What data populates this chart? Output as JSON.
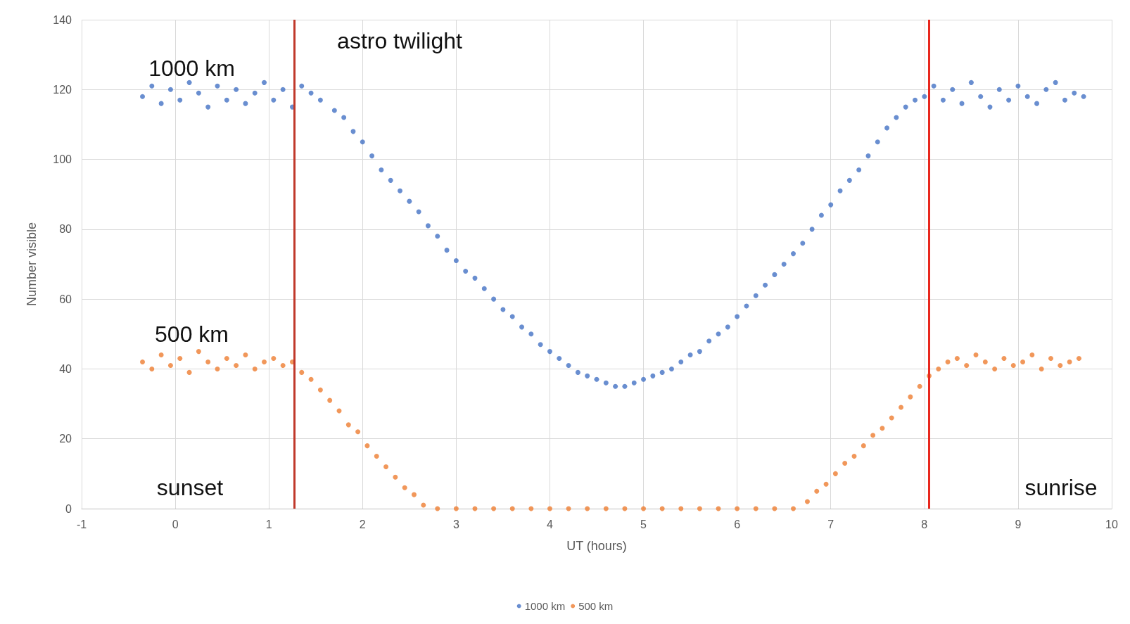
{
  "chart_data": {
    "type": "scatter",
    "xlabel": "UT (hours)",
    "ylabel": "Number visible",
    "xlim": [
      -1,
      10
    ],
    "xticks": [
      -1,
      0,
      1,
      2,
      3,
      4,
      5,
      6,
      7,
      8,
      9,
      10
    ],
    "ylim": [
      0,
      140
    ],
    "yticks": [
      0,
      20,
      40,
      60,
      80,
      100,
      120,
      140
    ],
    "grid": true,
    "legend": "bottom",
    "marker": "circle",
    "series": [
      {
        "name": "1000 km",
        "color": "#4472c4",
        "x": [
          -0.35,
          -0.25,
          -0.15,
          -0.05,
          0.05,
          0.15,
          0.25,
          0.35,
          0.45,
          0.55,
          0.65,
          0.75,
          0.85,
          0.95,
          1.05,
          1.15,
          1.25,
          1.35,
          1.45,
          1.55,
          1.7,
          1.8,
          1.9,
          2.0,
          2.1,
          2.2,
          2.3,
          2.4,
          2.5,
          2.6,
          2.7,
          2.8,
          2.9,
          3.0,
          3.1,
          3.2,
          3.3,
          3.4,
          3.5,
          3.6,
          3.7,
          3.8,
          3.9,
          4.0,
          4.1,
          4.2,
          4.3,
          4.4,
          4.5,
          4.6,
          4.7,
          4.8,
          4.9,
          5.0,
          5.1,
          5.2,
          5.3,
          5.4,
          5.5,
          5.6,
          5.7,
          5.8,
          5.9,
          6.0,
          6.1,
          6.2,
          6.3,
          6.4,
          6.5,
          6.6,
          6.7,
          6.8,
          6.9,
          7.0,
          7.1,
          7.2,
          7.3,
          7.4,
          7.5,
          7.6,
          7.7,
          7.8,
          7.9,
          8.0,
          8.1,
          8.2,
          8.3,
          8.4,
          8.5,
          8.6,
          8.7,
          8.8,
          8.9,
          9.0,
          9.1,
          9.2,
          9.3,
          9.4,
          9.5,
          9.6,
          9.7
        ],
        "values": [
          118,
          121,
          116,
          120,
          117,
          122,
          119,
          115,
          121,
          117,
          120,
          116,
          119,
          122,
          117,
          120,
          115,
          121,
          119,
          117,
          114,
          112,
          108,
          105,
          101,
          97,
          94,
          91,
          88,
          85,
          81,
          78,
          74,
          71,
          68,
          66,
          63,
          60,
          57,
          55,
          52,
          50,
          47,
          45,
          43,
          41,
          39,
          38,
          37,
          36,
          35,
          35,
          36,
          37,
          38,
          39,
          40,
          42,
          44,
          45,
          48,
          50,
          52,
          55,
          58,
          61,
          64,
          67,
          70,
          73,
          76,
          80,
          84,
          87,
          91,
          94,
          97,
          101,
          105,
          109,
          112,
          115,
          117,
          118,
          121,
          117,
          120,
          116,
          122,
          118,
          115,
          120,
          117,
          121,
          118,
          116,
          120,
          122,
          117,
          119,
          118
        ]
      },
      {
        "name": "500 km",
        "color": "#ed7d31",
        "x": [
          -0.35,
          -0.25,
          -0.15,
          -0.05,
          0.05,
          0.15,
          0.25,
          0.35,
          0.45,
          0.55,
          0.65,
          0.75,
          0.85,
          0.95,
          1.05,
          1.15,
          1.25,
          1.35,
          1.45,
          1.55,
          1.65,
          1.75,
          1.85,
          1.95,
          2.05,
          2.15,
          2.25,
          2.35,
          2.45,
          2.55,
          2.65,
          2.8,
          3.0,
          3.2,
          3.4,
          3.6,
          3.8,
          4.0,
          4.2,
          4.4,
          4.6,
          4.8,
          5.0,
          5.2,
          5.4,
          5.6,
          5.8,
          6.0,
          6.2,
          6.4,
          6.6,
          6.75,
          6.85,
          6.95,
          7.05,
          7.15,
          7.25,
          7.35,
          7.45,
          7.55,
          7.65,
          7.75,
          7.85,
          7.95,
          8.05,
          8.15,
          8.25,
          8.35,
          8.45,
          8.55,
          8.65,
          8.75,
          8.85,
          8.95,
          9.05,
          9.15,
          9.25,
          9.35,
          9.45,
          9.55,
          9.65
        ],
        "values": [
          42,
          40,
          44,
          41,
          43,
          39,
          45,
          42,
          40,
          43,
          41,
          44,
          40,
          42,
          43,
          41,
          42,
          39,
          37,
          34,
          31,
          28,
          24,
          22,
          18,
          15,
          12,
          9,
          6,
          4,
          1,
          0,
          0,
          0,
          0,
          0,
          0,
          0,
          0,
          0,
          0,
          0,
          0,
          0,
          0,
          0,
          0,
          0,
          0,
          0,
          0,
          2,
          5,
          7,
          10,
          13,
          15,
          18,
          21,
          23,
          26,
          29,
          32,
          35,
          38,
          40,
          42,
          43,
          41,
          44,
          42,
          40,
          43,
          41,
          42,
          44,
          40,
          43,
          41,
          42,
          43
        ]
      }
    ],
    "ref_lines": [
      {
        "axis": "x",
        "value": 1.27,
        "color": "#c0392b"
      },
      {
        "axis": "x",
        "value": 8.05,
        "color": "#e8281e"
      }
    ],
    "annotations": [
      "astro twilight",
      "sunset",
      "sunrise"
    ]
  }
}
